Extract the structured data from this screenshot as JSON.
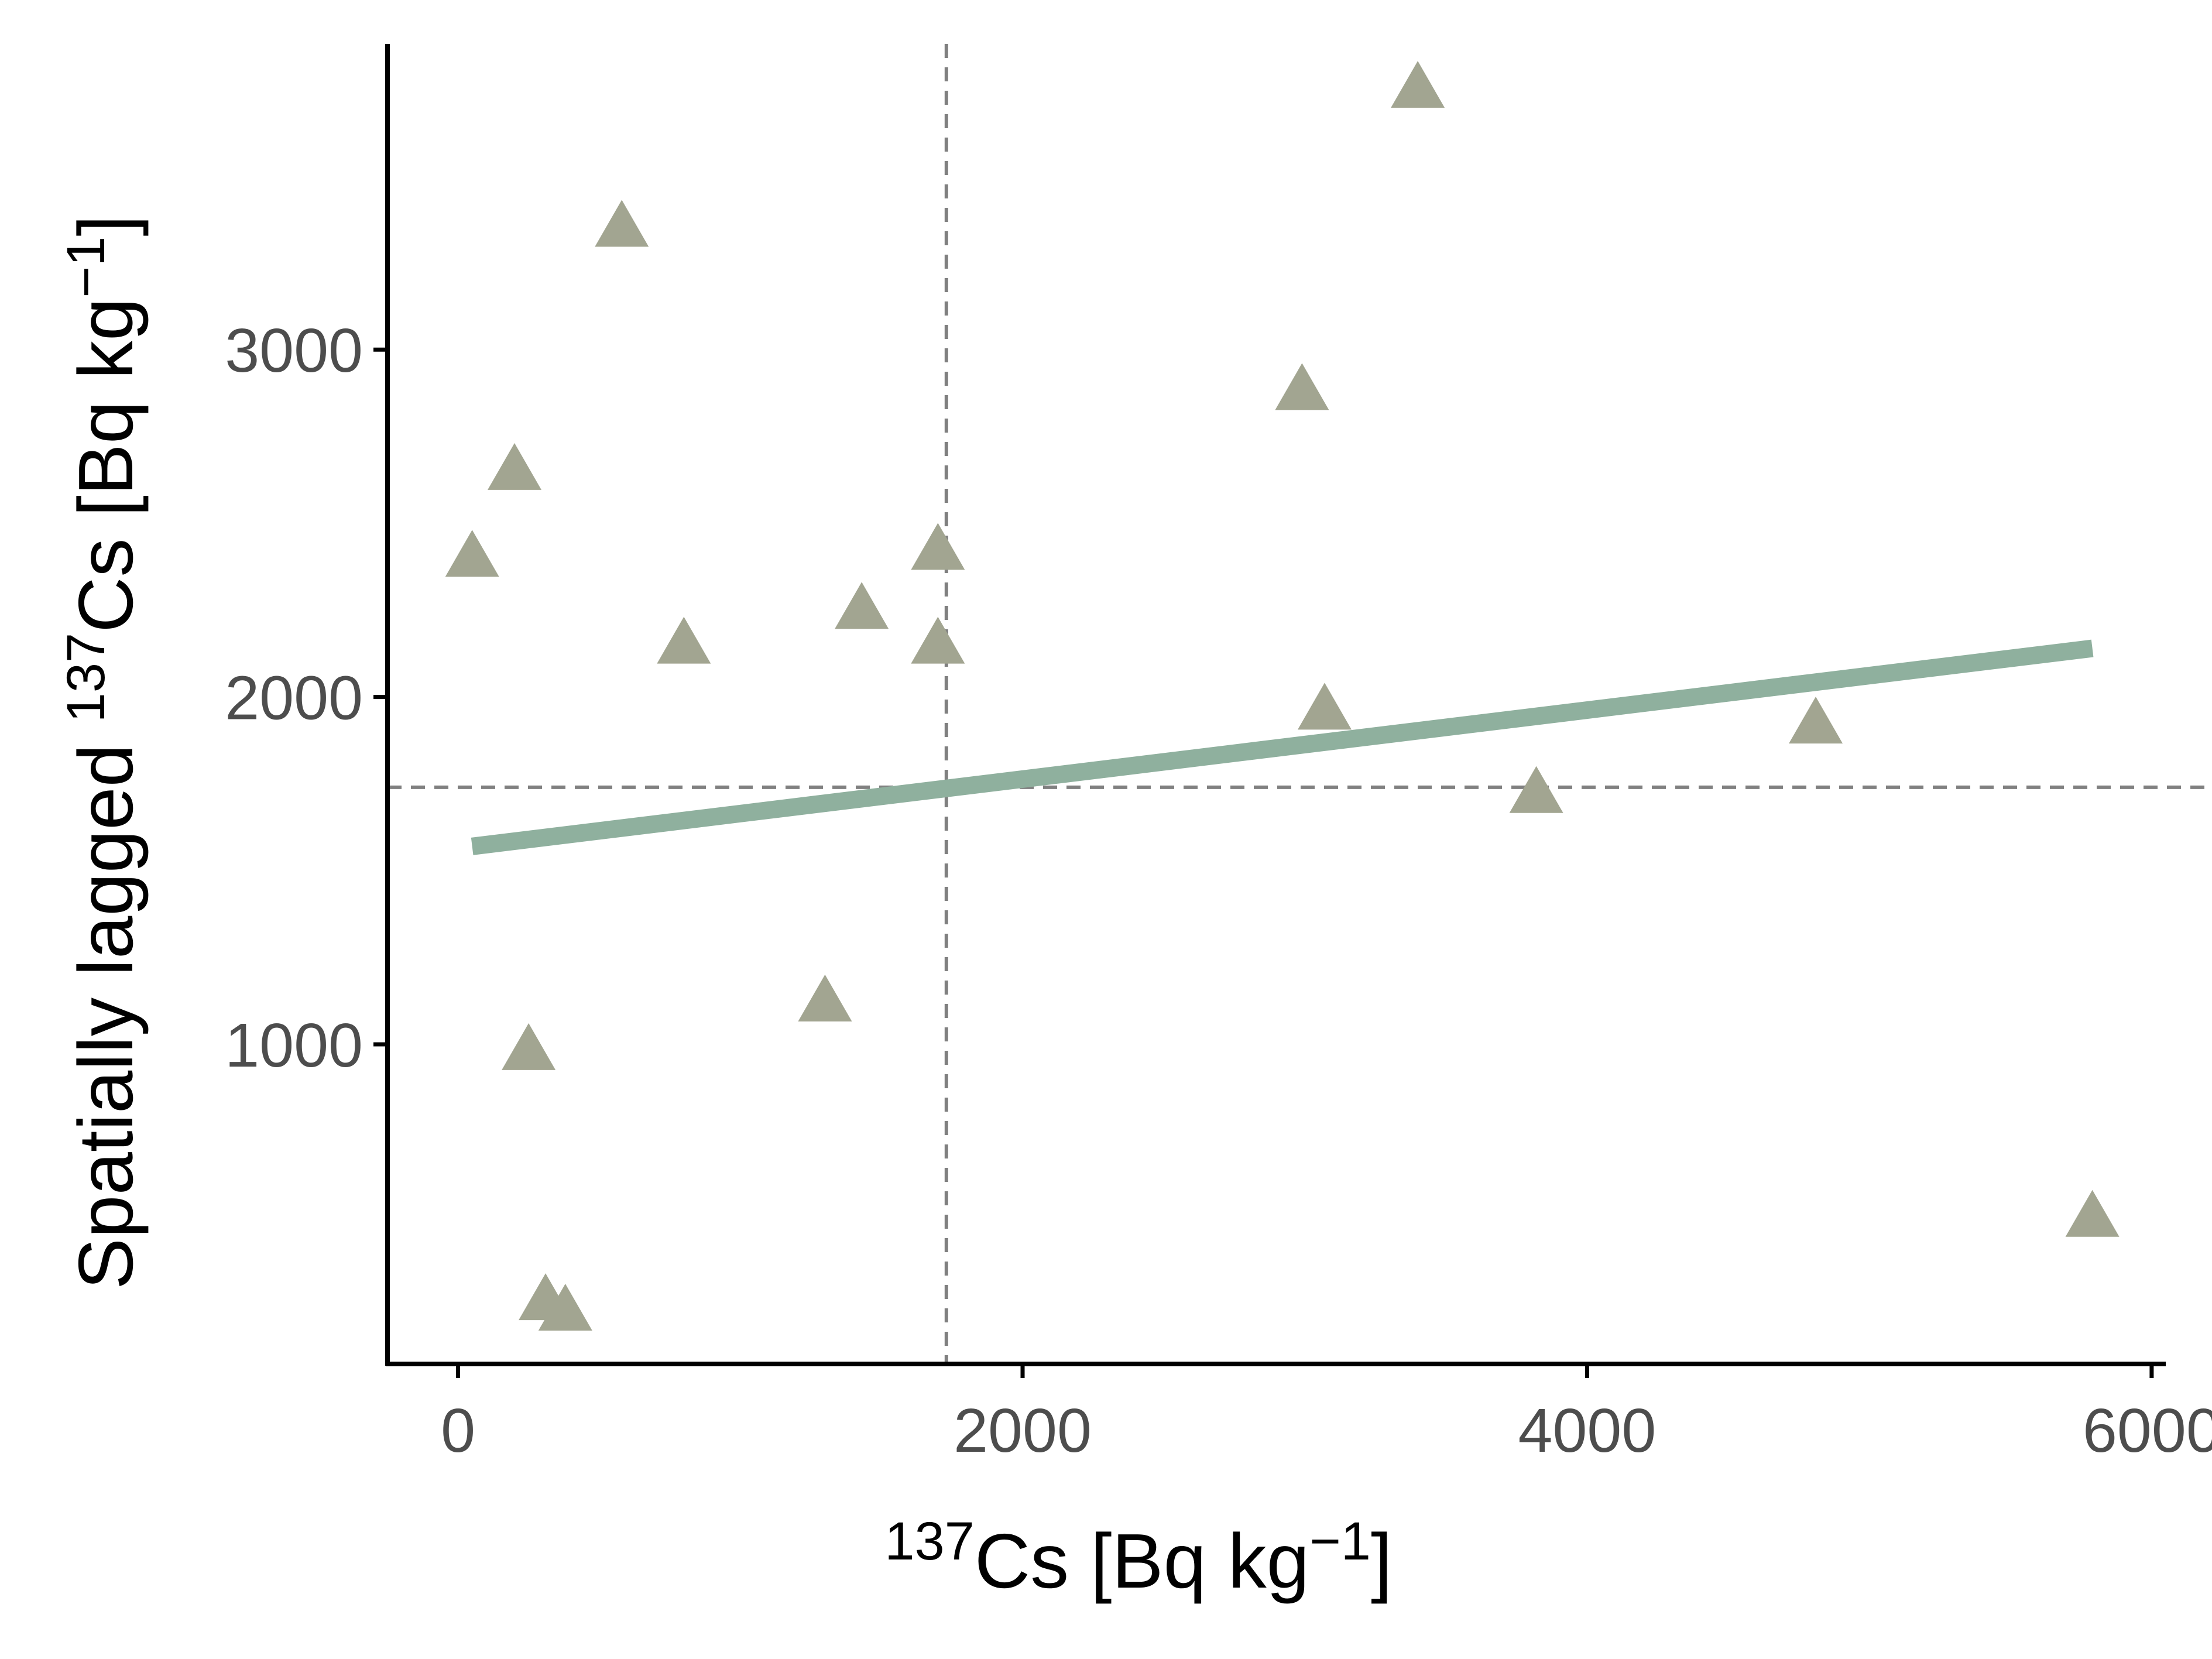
{
  "chart_data": {
    "type": "scatter",
    "x": [
      50,
      200,
      250,
      310,
      380,
      580,
      800,
      1300,
      1430,
      1700,
      1700,
      2990,
      3070,
      3400,
      3820,
      4810,
      5790
    ],
    "y": [
      2400,
      2650,
      980,
      260,
      230,
      3350,
      2150,
      1120,
      2250,
      2150,
      2420,
      2880,
      1960,
      3750,
      1720,
      1920,
      500
    ],
    "trend_line": {
      "x": [
        50,
        5790
      ],
      "y": [
        1570,
        2140
      ]
    },
    "mean_x": 1730,
    "mean_y": 1740,
    "xlim": [
      -250,
      6050
    ],
    "ylim": [
      80,
      3880
    ],
    "x_ticks": [
      0,
      2000,
      4000,
      6000
    ],
    "x_tick_labels": [
      "0",
      "2000",
      "4000",
      "6000"
    ],
    "y_ticks": [
      1000,
      2000,
      3000
    ],
    "y_tick_labels": [
      "1000",
      "2000",
      "3000"
    ],
    "xlabel": {
      "sup": "137",
      "main": "Cs [Bq kg",
      "unit_sup": "−1",
      "close": "]"
    },
    "ylabel": {
      "prefix": "Spatially lagged ",
      "sup": "137",
      "main": "Cs [Bq kg",
      "unit_sup": "−1",
      "close": "]"
    },
    "grid": false,
    "colors": {
      "points": "#a2a591",
      "trend_line": "#8fb09e",
      "reference_lines": "#808080",
      "axis": "#000000"
    }
  }
}
